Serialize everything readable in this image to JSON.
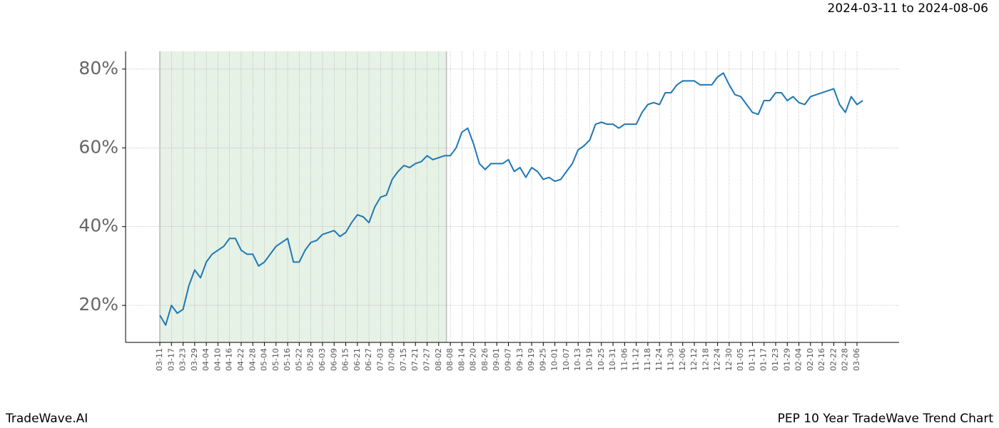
{
  "chart_data": {
    "type": "line",
    "title": "2024-03-11 to 2024-08-06",
    "footer_left": "TradeWave.AI",
    "footer_right": "PEP 10 Year TradeWave Trend Chart",
    "color": "#1f77b4",
    "highlight_color": "#e6f2e6",
    "grid": true,
    "categories": [
      "03-11",
      null,
      "03-17",
      null,
      "03-23",
      null,
      "03-29",
      null,
      "04-04",
      null,
      "04-10",
      null,
      "04-16",
      null,
      "04-22",
      null,
      "04-28",
      null,
      "05-04",
      null,
      "05-10",
      null,
      "05-16",
      null,
      "05-22",
      null,
      "05-28",
      null,
      "06-03",
      null,
      "06-09",
      null,
      "06-15",
      null,
      "06-21",
      null,
      "06-27",
      null,
      "07-03",
      null,
      "07-09",
      null,
      "07-15",
      null,
      "07-21",
      null,
      "07-27",
      null,
      "08-02",
      null,
      "08-08",
      null,
      "08-14",
      null,
      "08-20",
      null,
      "08-26",
      null,
      "09-01",
      null,
      "09-07",
      null,
      "09-13",
      null,
      "09-19",
      null,
      "09-25",
      null,
      "10-01",
      null,
      "10-07",
      null,
      "10-13",
      null,
      "10-19",
      null,
      "10-25",
      null,
      "10-31",
      null,
      "11-06",
      null,
      "11-12",
      null,
      "11-18",
      null,
      "11-24",
      null,
      "11-30",
      null,
      "12-06",
      null,
      "12-12",
      null,
      "12-18",
      null,
      "12-24",
      null,
      "12-30",
      null,
      "01-05",
      null,
      "01-11",
      null,
      "01-17",
      null,
      "01-23",
      null,
      "01-29",
      null,
      "02-04",
      null,
      "02-10",
      null,
      "02-16",
      null,
      "02-22",
      null,
      "02-28",
      null,
      "03-06",
      null
    ],
    "values": [
      17.5,
      15,
      20,
      18,
      19,
      25,
      29,
      27,
      31,
      33,
      34,
      35,
      37,
      37,
      34,
      33,
      33,
      30,
      31,
      33,
      35,
      36,
      37,
      31,
      31,
      34,
      36,
      36.5,
      38,
      38.5,
      39,
      37.5,
      38.5,
      41,
      43,
      42.5,
      41,
      45,
      47.5,
      48,
      52,
      54,
      55.5,
      55,
      56,
      56.5,
      58,
      57,
      57.5,
      58,
      58,
      60,
      64,
      65,
      61,
      56,
      54.5,
      56,
      56,
      56,
      57,
      54,
      55,
      52.5,
      55,
      54,
      52,
      52.5,
      51.5,
      52,
      54,
      56,
      59.5,
      60.5,
      62,
      66,
      66.5,
      66,
      66,
      65,
      66,
      66,
      66,
      69,
      71,
      71.5,
      71,
      74,
      74,
      76,
      77,
      77,
      77,
      76,
      76,
      76,
      78,
      79,
      76,
      73.5,
      73,
      71,
      69,
      68.5,
      72,
      72,
      74,
      74,
      72,
      73,
      71.5,
      71,
      73,
      73.5,
      74,
      74.5,
      75,
      71,
      69,
      73,
      71,
      72
    ],
    "ylim": [
      10.6,
      84.5
    ],
    "yticks": [
      {
        "value": 20,
        "label": "20%"
      },
      {
        "value": 40,
        "label": "40%"
      },
      {
        "value": 60,
        "label": "60%"
      },
      {
        "value": 80,
        "label": "80%"
      }
    ]
  }
}
